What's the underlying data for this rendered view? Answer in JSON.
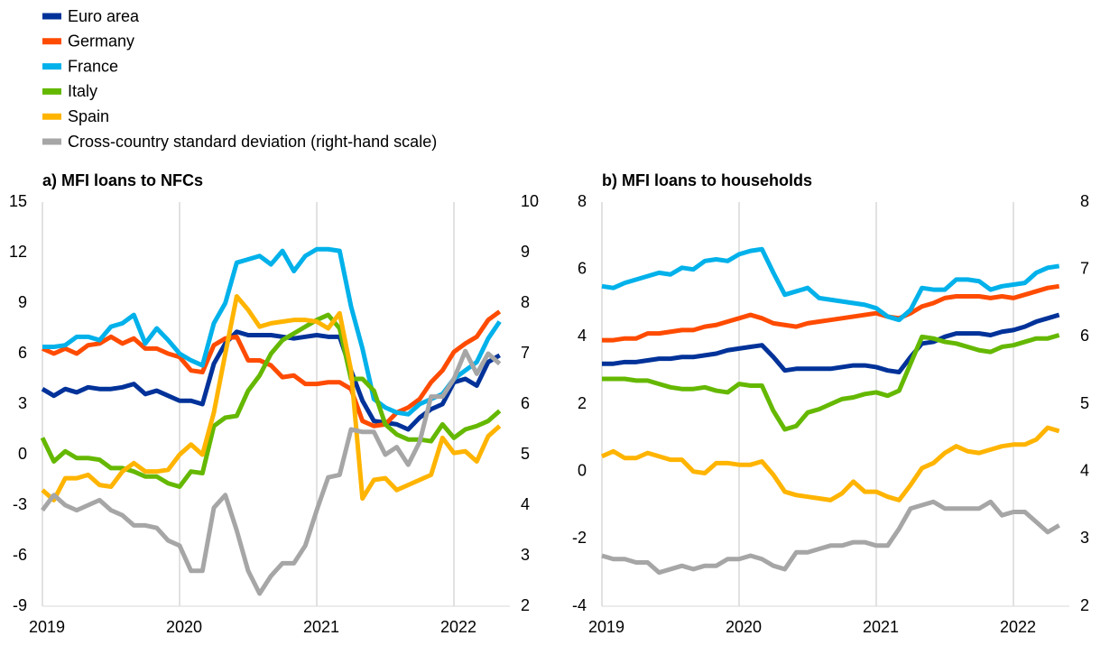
{
  "chart_data": [
    {
      "type": "line",
      "title": "a) MFI loans to NFCs",
      "categories": [
        "2019",
        null,
        null,
        null,
        null,
        null,
        null,
        null,
        null,
        null,
        null,
        null,
        "2020",
        null,
        null,
        null,
        null,
        null,
        null,
        null,
        null,
        null,
        null,
        null,
        "2021",
        null,
        null,
        null,
        null,
        null,
        null,
        null,
        null,
        null,
        null,
        null,
        "2022",
        null,
        null,
        null,
        null
      ],
      "ylim": [
        -9,
        15
      ],
      "yticks": [
        -9,
        -6,
        -3,
        0,
        3,
        6,
        9,
        12,
        15
      ],
      "y2lim": [
        2,
        10
      ],
      "y2ticks": [
        2,
        3,
        4,
        5,
        6,
        7,
        8,
        9,
        10
      ],
      "grid": "x",
      "series": [
        {
          "name": "Euro area",
          "color": "#003299",
          "values": [
            3.9,
            3.5,
            3.9,
            3.7,
            4.0,
            3.9,
            3.9,
            4.0,
            4.2,
            3.6,
            3.8,
            3.5,
            3.2,
            3.2,
            3.0,
            5.4,
            6.6,
            7.3,
            7.1,
            7.1,
            7.1,
            7.0,
            6.9,
            7.0,
            7.1,
            7.0,
            7.0,
            5.0,
            3.2,
            2.0,
            1.9,
            1.8,
            1.5,
            2.2,
            2.7,
            3.0,
            4.3,
            4.5,
            4.1,
            5.5,
            5.9
          ]
        },
        {
          "name": "Germany",
          "color": "#ff4b00",
          "values": [
            6.3,
            6.0,
            6.3,
            6.0,
            6.5,
            6.6,
            7.0,
            6.6,
            6.9,
            6.3,
            6.3,
            6.0,
            5.8,
            5.0,
            4.9,
            6.5,
            6.9,
            7.0,
            5.6,
            5.6,
            5.3,
            4.6,
            4.7,
            4.2,
            4.2,
            4.3,
            4.3,
            3.9,
            2.0,
            1.7,
            1.8,
            2.5,
            2.8,
            3.3,
            4.3,
            5.0,
            6.1,
            6.6,
            7.0,
            8.0,
            8.5
          ]
        },
        {
          "name": "France",
          "color": "#00b1ea",
          "values": [
            6.4,
            6.4,
            6.5,
            7.0,
            7.0,
            6.8,
            7.6,
            7.8,
            8.3,
            6.6,
            7.5,
            6.8,
            6.0,
            5.6,
            5.3,
            7.8,
            9.0,
            11.4,
            11.6,
            11.8,
            11.3,
            12.1,
            10.9,
            11.8,
            12.2,
            12.2,
            12.1,
            8.8,
            6.3,
            3.3,
            2.8,
            2.5,
            2.4,
            3.0,
            3.3,
            3.6,
            4.5,
            5.0,
            5.5,
            6.9,
            7.9
          ]
        },
        {
          "name": "Italy",
          "color": "#65b800",
          "values": [
            1.0,
            -0.4,
            0.2,
            -0.2,
            -0.2,
            -0.3,
            -0.8,
            -0.8,
            -1.0,
            -1.3,
            -1.3,
            -1.7,
            -1.9,
            -1.0,
            -1.1,
            1.7,
            2.2,
            2.3,
            3.8,
            4.7,
            6.0,
            6.8,
            7.2,
            7.6,
            8.0,
            8.3,
            7.5,
            4.5,
            4.5,
            3.8,
            1.8,
            1.2,
            0.9,
            0.9,
            0.8,
            1.8,
            1.0,
            1.5,
            1.7,
            2.0,
            2.6
          ]
        },
        {
          "name": "Spain",
          "color": "#ffb400",
          "values": [
            -2.1,
            -2.7,
            -1.4,
            -1.4,
            -1.2,
            -1.8,
            -1.9,
            -1.0,
            -0.5,
            -1.0,
            -1.0,
            -0.9,
            0.0,
            0.6,
            0.0,
            2.5,
            6.0,
            9.4,
            8.6,
            7.6,
            7.8,
            7.9,
            8.0,
            8.0,
            7.9,
            7.5,
            8.4,
            5.0,
            -2.6,
            -1.5,
            -1.4,
            -2.1,
            -1.8,
            -1.5,
            -1.2,
            1.0,
            0.1,
            0.2,
            -0.4,
            1.1,
            1.7
          ]
        },
        {
          "name": "Cross-country standard deviation (right-hand scale)",
          "color": "#a6a6a6",
          "axis": "y2",
          "values": [
            3.9,
            4.2,
            4.0,
            3.9,
            4.0,
            4.1,
            3.9,
            3.8,
            3.6,
            3.6,
            3.55,
            3.3,
            3.2,
            2.7,
            2.7,
            3.95,
            4.2,
            3.5,
            2.7,
            2.25,
            2.6,
            2.85,
            2.85,
            3.2,
            3.9,
            4.55,
            4.6,
            5.5,
            5.45,
            5.45,
            5.0,
            5.15,
            4.8,
            5.25,
            6.15,
            6.15,
            6.5,
            7.05,
            6.6,
            7.0,
            6.8
          ]
        }
      ]
    },
    {
      "type": "line",
      "title": "b) MFI loans to households",
      "categories": [
        "2019",
        null,
        null,
        null,
        null,
        null,
        null,
        null,
        null,
        null,
        null,
        null,
        "2020",
        null,
        null,
        null,
        null,
        null,
        null,
        null,
        null,
        null,
        null,
        null,
        "2021",
        null,
        null,
        null,
        null,
        null,
        null,
        null,
        null,
        null,
        null,
        null,
        "2022",
        null,
        null,
        null,
        null
      ],
      "ylim": [
        -4,
        8
      ],
      "yticks": [
        -4,
        -2,
        0,
        2,
        4,
        6,
        8
      ],
      "y2lim": [
        2,
        8
      ],
      "y2ticks": [
        2,
        3,
        4,
        5,
        6,
        7,
        8
      ],
      "grid": "x",
      "series": [
        {
          "color": "#003299",
          "values": [
            3.2,
            3.2,
            3.25,
            3.25,
            3.3,
            3.35,
            3.35,
            3.4,
            3.4,
            3.45,
            3.5,
            3.6,
            3.65,
            3.7,
            3.75,
            3.4,
            3.0,
            3.05,
            3.05,
            3.05,
            3.05,
            3.1,
            3.15,
            3.15,
            3.1,
            3.0,
            2.95,
            3.4,
            3.8,
            3.85,
            4.0,
            4.1,
            4.1,
            4.1,
            4.05,
            4.15,
            4.2,
            4.3,
            4.45,
            4.55,
            4.65
          ]
        },
        {
          "color": "#ff4b00",
          "values": [
            3.9,
            3.9,
            3.95,
            3.95,
            4.1,
            4.1,
            4.15,
            4.2,
            4.2,
            4.3,
            4.35,
            4.45,
            4.55,
            4.65,
            4.55,
            4.4,
            4.35,
            4.3,
            4.4,
            4.45,
            4.5,
            4.55,
            4.6,
            4.65,
            4.7,
            4.6,
            4.55,
            4.7,
            4.9,
            5.0,
            5.15,
            5.2,
            5.2,
            5.2,
            5.15,
            5.2,
            5.15,
            5.25,
            5.35,
            5.45,
            5.5
          ]
        },
        {
          "color": "#00b1ea",
          "values": [
            5.5,
            5.45,
            5.6,
            5.7,
            5.8,
            5.9,
            5.85,
            6.05,
            6.0,
            6.25,
            6.3,
            6.25,
            6.45,
            6.55,
            6.6,
            5.9,
            5.25,
            5.35,
            5.45,
            5.15,
            5.1,
            5.05,
            5.0,
            4.95,
            4.85,
            4.6,
            4.5,
            4.8,
            5.45,
            5.4,
            5.4,
            5.7,
            5.7,
            5.65,
            5.4,
            5.5,
            5.55,
            5.6,
            5.9,
            6.05,
            6.1
          ]
        },
        {
          "color": "#65b800",
          "values": [
            2.75,
            2.75,
            2.75,
            2.7,
            2.7,
            2.6,
            2.5,
            2.45,
            2.45,
            2.5,
            2.4,
            2.35,
            2.6,
            2.55,
            2.55,
            1.8,
            1.25,
            1.35,
            1.75,
            1.85,
            2.0,
            2.15,
            2.2,
            2.3,
            2.35,
            2.25,
            2.4,
            3.2,
            4.0,
            3.95,
            3.85,
            3.8,
            3.7,
            3.6,
            3.55,
            3.7,
            3.75,
            3.85,
            3.95,
            3.95,
            4.05
          ]
        },
        {
          "color": "#ffb400",
          "values": [
            0.45,
            0.6,
            0.4,
            0.4,
            0.55,
            0.45,
            0.35,
            0.35,
            0.0,
            -0.05,
            0.25,
            0.25,
            0.2,
            0.2,
            0.3,
            -0.1,
            -0.6,
            -0.7,
            -0.75,
            -0.8,
            -0.85,
            -0.65,
            -0.3,
            -0.6,
            -0.6,
            -0.75,
            -0.85,
            -0.4,
            0.1,
            0.25,
            0.55,
            0.75,
            0.6,
            0.55,
            0.65,
            0.75,
            0.8,
            0.8,
            0.95,
            1.3,
            1.2
          ]
        },
        {
          "color": "#a6a6a6",
          "axis": "y2",
          "values": [
            2.75,
            2.7,
            2.7,
            2.65,
            2.65,
            2.5,
            2.55,
            2.6,
            2.55,
            2.6,
            2.6,
            2.7,
            2.7,
            2.75,
            2.7,
            2.6,
            2.55,
            2.8,
            2.8,
            2.85,
            2.9,
            2.9,
            2.95,
            2.95,
            2.9,
            2.9,
            3.15,
            3.45,
            3.5,
            3.55,
            3.45,
            3.45,
            3.45,
            3.45,
            3.55,
            3.35,
            3.4,
            3.4,
            3.25,
            3.1,
            3.2
          ]
        }
      ]
    }
  ]
}
